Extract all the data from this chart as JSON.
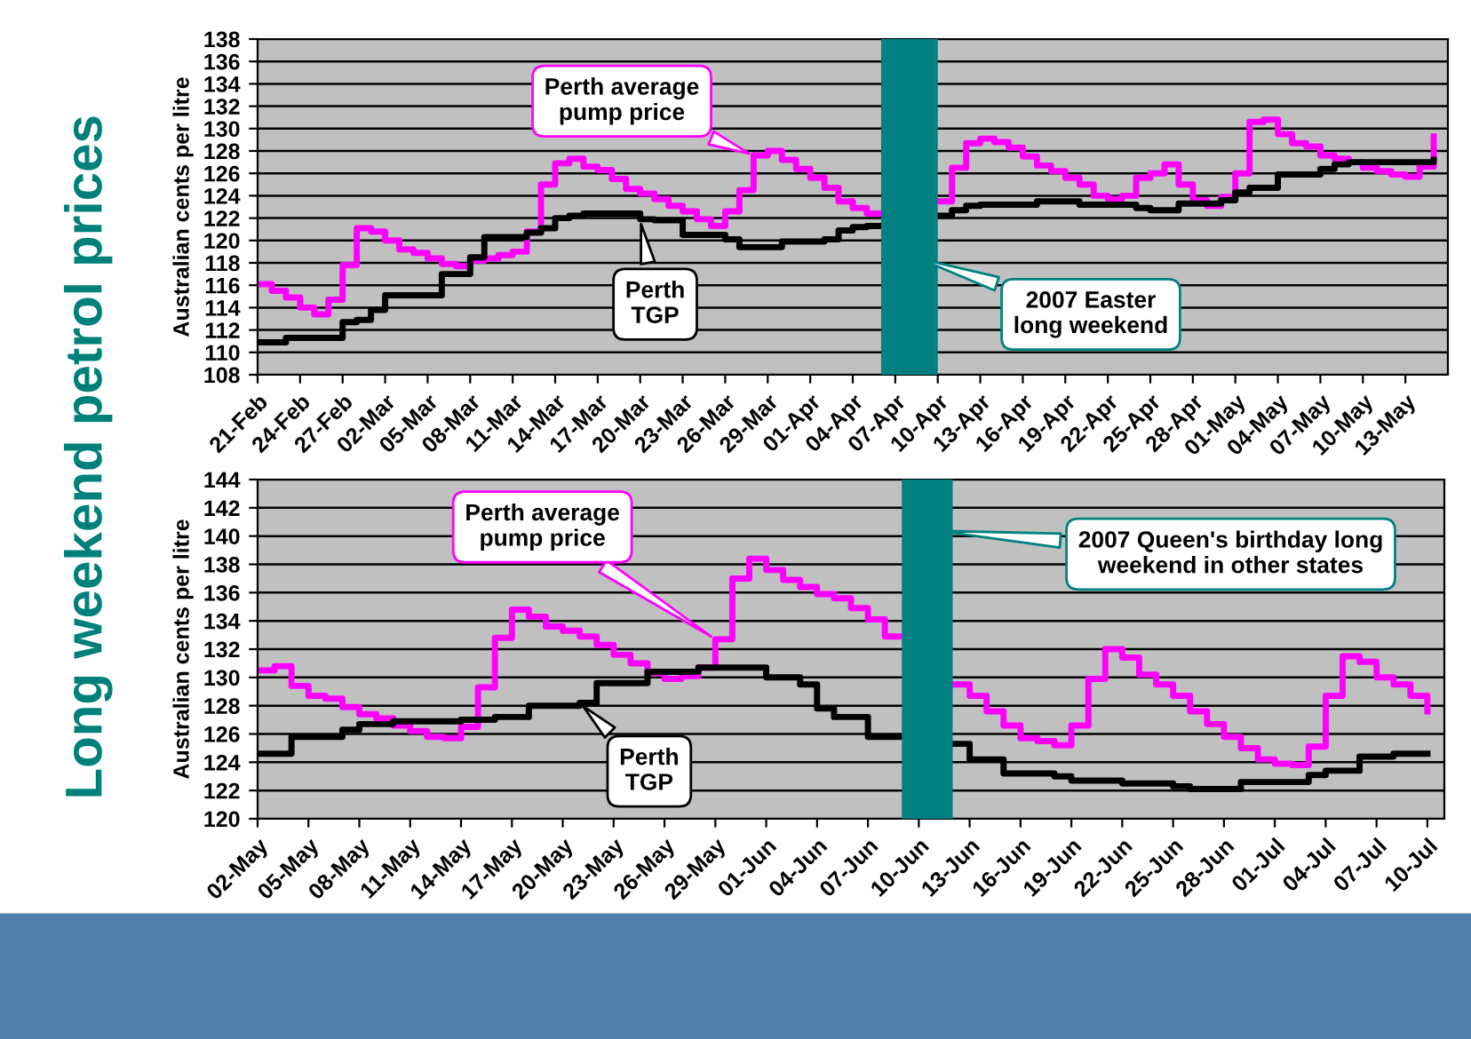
{
  "chart_data": [
    {
      "type": "step",
      "title": "Long weekend petrol prices",
      "ylabel": "Australian cents per litre",
      "x": [
        "2007-02-21",
        "2007-02-22",
        "2007-02-23",
        "2007-02-24",
        "2007-02-25",
        "2007-02-26",
        "2007-02-27",
        "2007-02-28",
        "2007-03-01",
        "2007-03-02",
        "2007-03-03",
        "2007-03-04",
        "2007-03-05",
        "2007-03-06",
        "2007-03-07",
        "2007-03-08",
        "2007-03-09",
        "2007-03-10",
        "2007-03-11",
        "2007-03-12",
        "2007-03-13",
        "2007-03-14",
        "2007-03-15",
        "2007-03-16",
        "2007-03-17",
        "2007-03-18",
        "2007-03-19",
        "2007-03-20",
        "2007-03-21",
        "2007-03-22",
        "2007-03-23",
        "2007-03-24",
        "2007-03-25",
        "2007-03-26",
        "2007-03-27",
        "2007-03-28",
        "2007-03-29",
        "2007-03-30",
        "2007-03-31",
        "2007-04-01",
        "2007-04-02",
        "2007-04-03",
        "2007-04-04",
        "2007-04-05",
        "2007-04-06",
        "2007-04-07",
        "2007-04-08",
        "2007-04-09",
        "2007-04-10",
        "2007-04-11",
        "2007-04-12",
        "2007-04-13",
        "2007-04-14",
        "2007-04-15",
        "2007-04-16",
        "2007-04-17",
        "2007-04-18",
        "2007-04-19",
        "2007-04-20",
        "2007-04-21",
        "2007-04-22",
        "2007-04-23",
        "2007-04-24",
        "2007-04-25",
        "2007-04-26",
        "2007-04-27",
        "2007-04-28",
        "2007-04-29",
        "2007-04-30",
        "2007-05-01",
        "2007-05-02",
        "2007-05-03",
        "2007-05-04",
        "2007-05-05",
        "2007-05-06",
        "2007-05-07",
        "2007-05-08",
        "2007-05-09",
        "2007-05-10",
        "2007-05-11",
        "2007-05-12",
        "2007-05-13",
        "2007-05-14",
        "2007-05-15"
      ],
      "series": [
        {
          "name": "Perth average\npump price",
          "color": "#ff00ff",
          "values": [
            116.1,
            115.5,
            114.9,
            114,
            113.4,
            114.7,
            117.8,
            121.1,
            120.8,
            120,
            119.2,
            118.9,
            118.4,
            117.9,
            117.7,
            118.2,
            118.4,
            118.7,
            119,
            120.8,
            125,
            126.9,
            127.3,
            126.6,
            126.3,
            125.5,
            124.6,
            124.2,
            123.7,
            123.1,
            122.6,
            121.9,
            121.3,
            122.6,
            124.5,
            127.6,
            128,
            127.2,
            126.4,
            125.6,
            124.7,
            123.5,
            122.9,
            122.4,
            null,
            null,
            null,
            null,
            123.5,
            126.5,
            128.7,
            129.1,
            128.8,
            128.3,
            127.5,
            126.7,
            126.2,
            125.6,
            125,
            124,
            123.7,
            124,
            125.6,
            126,
            126.8,
            125,
            123.6,
            123.1,
            123.9,
            126,
            130.6,
            130.8,
            129.5,
            128.7,
            128.4,
            127.6,
            127.3,
            127,
            126.5,
            126.2,
            125.9,
            125.7,
            126.6,
            129.3
          ]
        },
        {
          "name": "Perth\nTGP",
          "color": "#000000",
          "values": [
            110.9,
            110.9,
            111.3,
            111.3,
            111.3,
            111.3,
            112.7,
            112.9,
            113.8,
            115.1,
            115.1,
            115.1,
            115.1,
            117,
            117,
            118.5,
            120.3,
            120.3,
            120.3,
            120.7,
            121.1,
            122,
            122.2,
            122.4,
            122.4,
            122.4,
            122.4,
            121.9,
            121.8,
            121.8,
            120.5,
            120.5,
            120.5,
            120.1,
            119.4,
            119.4,
            119.4,
            119.9,
            119.9,
            119.9,
            120.1,
            120.9,
            121.2,
            121.3,
            null,
            null,
            null,
            null,
            122.2,
            122.7,
            123.1,
            123.2,
            123.2,
            123.2,
            123.2,
            123.5,
            123.5,
            123.5,
            123.2,
            123.2,
            123.2,
            123.2,
            122.9,
            122.7,
            122.7,
            123.3,
            123.3,
            123.3,
            123.6,
            124.3,
            124.7,
            124.7,
            125.9,
            125.9,
            125.9,
            126.4,
            126.8,
            127,
            127,
            127,
            127,
            127,
            127,
            127.2
          ]
        }
      ],
      "xlim": [
        "2007-02-21",
        "2007-05-16"
      ],
      "xticks": [
        {
          "value": "2007-02-21",
          "label": "21-Feb"
        },
        {
          "value": "2007-02-24",
          "label": "24-Feb"
        },
        {
          "value": "2007-02-27",
          "label": "27-Feb"
        },
        {
          "value": "2007-03-02",
          "label": "02-Mar"
        },
        {
          "value": "2007-03-05",
          "label": "05-Mar"
        },
        {
          "value": "2007-03-08",
          "label": "08-Mar"
        },
        {
          "value": "2007-03-11",
          "label": "11-Mar"
        },
        {
          "value": "2007-03-14",
          "label": "14-Mar"
        },
        {
          "value": "2007-03-17",
          "label": "17-Mar"
        },
        {
          "value": "2007-03-20",
          "label": "20-Mar"
        },
        {
          "value": "2007-03-23",
          "label": "23-Mar"
        },
        {
          "value": "2007-03-26",
          "label": "26-Mar"
        },
        {
          "value": "2007-03-29",
          "label": "29-Mar"
        },
        {
          "value": "2007-04-01",
          "label": "01-Apr"
        },
        {
          "value": "2007-04-04",
          "label": "04-Apr"
        },
        {
          "value": "2007-04-07",
          "label": "07-Apr"
        },
        {
          "value": "2007-04-10",
          "label": "10-Apr"
        },
        {
          "value": "2007-04-13",
          "label": "13-Apr"
        },
        {
          "value": "2007-04-16",
          "label": "16-Apr"
        },
        {
          "value": "2007-04-19",
          "label": "19-Apr"
        },
        {
          "value": "2007-04-22",
          "label": "22-Apr"
        },
        {
          "value": "2007-04-25",
          "label": "25-Apr"
        },
        {
          "value": "2007-04-28",
          "label": "28-Apr"
        },
        {
          "value": "2007-05-01",
          "label": "01-May"
        },
        {
          "value": "2007-05-04",
          "label": "04-May"
        },
        {
          "value": "2007-05-07",
          "label": "07-May"
        },
        {
          "value": "2007-05-10",
          "label": "10-May"
        },
        {
          "value": "2007-05-13",
          "label": "13-May"
        }
      ],
      "ylim": [
        108,
        138
      ],
      "yticks": [
        108,
        110,
        112,
        114,
        116,
        118,
        120,
        122,
        124,
        126,
        128,
        130,
        132,
        134,
        136,
        138
      ],
      "bands": [
        {
          "axis": "x",
          "from": "2007-04-06",
          "to": "2007-04-10",
          "label": "2007 Easter\nlong weekend",
          "color": "#008080"
        }
      ],
      "grid": "y",
      "marker": "none",
      "line_style": "solid"
    },
    {
      "type": "step",
      "ylabel": "Australian cents per litre",
      "x": [
        "2007-05-02",
        "2007-05-03",
        "2007-05-04",
        "2007-05-05",
        "2007-05-06",
        "2007-05-07",
        "2007-05-08",
        "2007-05-09",
        "2007-05-10",
        "2007-05-11",
        "2007-05-12",
        "2007-05-13",
        "2007-05-14",
        "2007-05-15",
        "2007-05-16",
        "2007-05-17",
        "2007-05-18",
        "2007-05-19",
        "2007-05-20",
        "2007-05-21",
        "2007-05-22",
        "2007-05-23",
        "2007-05-24",
        "2007-05-25",
        "2007-05-26",
        "2007-05-27",
        "2007-05-28",
        "2007-05-29",
        "2007-05-30",
        "2007-05-31",
        "2007-06-01",
        "2007-06-02",
        "2007-06-03",
        "2007-06-04",
        "2007-06-05",
        "2007-06-06",
        "2007-06-07",
        "2007-06-08",
        "2007-06-09",
        "2007-06-10",
        "2007-06-11",
        "2007-06-12",
        "2007-06-13",
        "2007-06-14",
        "2007-06-15",
        "2007-06-16",
        "2007-06-17",
        "2007-06-18",
        "2007-06-19",
        "2007-06-20",
        "2007-06-21",
        "2007-06-22",
        "2007-06-23",
        "2007-06-24",
        "2007-06-25",
        "2007-06-26",
        "2007-06-27",
        "2007-06-28",
        "2007-06-29",
        "2007-06-30",
        "2007-07-01",
        "2007-07-02",
        "2007-07-03",
        "2007-07-04",
        "2007-07-05",
        "2007-07-06",
        "2007-07-07",
        "2007-07-08",
        "2007-07-09",
        "2007-07-10"
      ],
      "series": [
        {
          "name": "Perth average\npump price",
          "color": "#ff00ff",
          "values": [
            130.5,
            130.8,
            129.4,
            128.7,
            128.5,
            127.9,
            127.4,
            127.1,
            126.6,
            126.2,
            125.8,
            125.7,
            126.5,
            129.3,
            132.8,
            134.8,
            134.3,
            133.6,
            133.3,
            132.9,
            132.3,
            131.6,
            131,
            130.3,
            129.9,
            130.1,
            130.7,
            132.7,
            137,
            138.4,
            137.6,
            136.9,
            136.4,
            135.9,
            135.6,
            134.9,
            134.1,
            132.9,
            null,
            null,
            null,
            129.5,
            128.7,
            127.6,
            126.6,
            125.7,
            125.5,
            125.2,
            126.6,
            129.9,
            132,
            131.4,
            130.2,
            129.5,
            128.7,
            127.6,
            126.7,
            125.8,
            125,
            124.2,
            123.9,
            123.8,
            125.1,
            128.7,
            131.5,
            131.1,
            130,
            129.5,
            128.7,
            127.6
          ]
        },
        {
          "name": "Perth\nTGP",
          "color": "#000000",
          "values": [
            124.6,
            124.6,
            125.8,
            125.8,
            125.8,
            126.3,
            126.7,
            126.7,
            126.9,
            126.9,
            126.9,
            126.9,
            127,
            127,
            127.2,
            127.2,
            128,
            128,
            128,
            128.2,
            129.6,
            129.6,
            129.6,
            130.4,
            130.4,
            130.4,
            130.7,
            130.7,
            130.7,
            130.7,
            130,
            130,
            129.5,
            127.8,
            127.2,
            127.2,
            125.8,
            125.8,
            null,
            null,
            null,
            125.3,
            124.2,
            124.2,
            123.2,
            123.2,
            123.2,
            123,
            122.7,
            122.7,
            122.7,
            122.5,
            122.5,
            122.5,
            122.3,
            122.1,
            122.1,
            122.1,
            122.6,
            122.6,
            122.6,
            122.6,
            123.1,
            123.4,
            123.4,
            124.4,
            124.4,
            124.6,
            124.6,
            124.6
          ]
        }
      ],
      "xlim": [
        "2007-05-02",
        "2007-07-11"
      ],
      "xticks": [
        {
          "value": "2007-05-02",
          "label": "02-May"
        },
        {
          "value": "2007-05-05",
          "label": "05-May"
        },
        {
          "value": "2007-05-08",
          "label": "08-May"
        },
        {
          "value": "2007-05-11",
          "label": "11-May"
        },
        {
          "value": "2007-05-14",
          "label": "14-May"
        },
        {
          "value": "2007-05-17",
          "label": "17-May"
        },
        {
          "value": "2007-05-20",
          "label": "20-May"
        },
        {
          "value": "2007-05-23",
          "label": "23-May"
        },
        {
          "value": "2007-05-26",
          "label": "26-May"
        },
        {
          "value": "2007-05-29",
          "label": "29-May"
        },
        {
          "value": "2007-06-01",
          "label": "01-Jun"
        },
        {
          "value": "2007-06-04",
          "label": "04-Jun"
        },
        {
          "value": "2007-06-07",
          "label": "07-Jun"
        },
        {
          "value": "2007-06-10",
          "label": "10-Jun"
        },
        {
          "value": "2007-06-13",
          "label": "13-Jun"
        },
        {
          "value": "2007-06-16",
          "label": "16-Jun"
        },
        {
          "value": "2007-06-19",
          "label": "19-Jun"
        },
        {
          "value": "2007-06-22",
          "label": "22-Jun"
        },
        {
          "value": "2007-06-25",
          "label": "25-Jun"
        },
        {
          "value": "2007-06-28",
          "label": "28-Jun"
        },
        {
          "value": "2007-07-01",
          "label": "01-Jul"
        },
        {
          "value": "2007-07-04",
          "label": "04-Jul"
        },
        {
          "value": "2007-07-07",
          "label": "07-Jul"
        },
        {
          "value": "2007-07-10",
          "label": "10-Jul"
        }
      ],
      "ylim": [
        120,
        144
      ],
      "yticks": [
        120,
        122,
        124,
        126,
        128,
        130,
        132,
        134,
        136,
        138,
        140,
        142,
        144
      ],
      "bands": [
        {
          "axis": "x",
          "from": "2007-06-09",
          "to": "2007-06-12",
          "label": "2007 Queen's birthday long\nweekend in other states",
          "color": "#008080"
        }
      ],
      "grid": "y",
      "marker": "none",
      "line_style": "solid"
    }
  ]
}
